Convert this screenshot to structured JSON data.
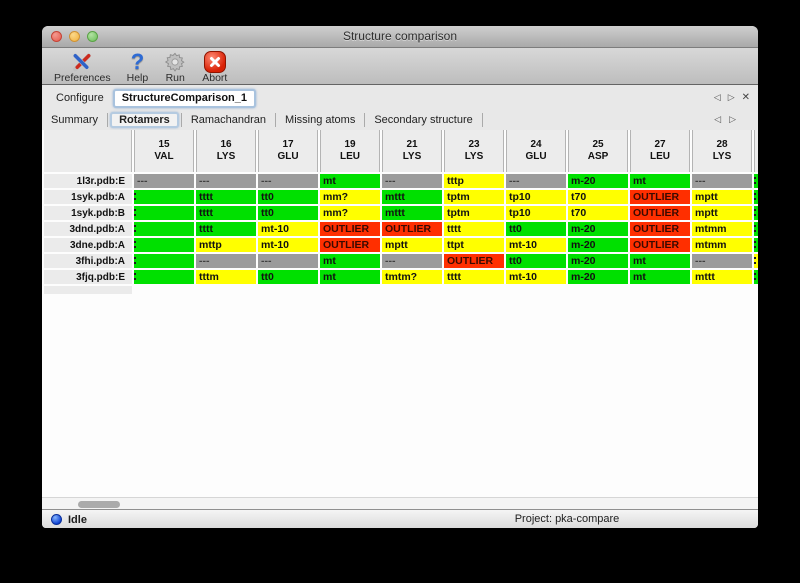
{
  "window": {
    "title": "Structure comparison"
  },
  "toolbar": {
    "items": [
      {
        "label": "Preferences",
        "icon": "tools-icon"
      },
      {
        "label": "Help",
        "icon": "help-icon"
      },
      {
        "label": "Run",
        "icon": "gear-icon"
      },
      {
        "label": "Abort",
        "icon": "abort-icon"
      }
    ]
  },
  "configure": {
    "label": "Configure",
    "value": "StructureComparison_1",
    "nav": {
      "prev": "◁",
      "next": "▷",
      "close": "✕"
    }
  },
  "tabs": {
    "items": [
      {
        "label": "Summary"
      },
      {
        "label": "Rotamers"
      },
      {
        "label": "Ramachandran"
      },
      {
        "label": "Missing atoms"
      },
      {
        "label": "Secondary structure"
      }
    ],
    "active": "Rotamers",
    "nav": {
      "prev": "◁",
      "next": "▷"
    }
  },
  "colors": {
    "green": "#00e000",
    "yellow": "#ffff00",
    "red": "#ff2f00",
    "gray": "#9b9b9b"
  },
  "table": {
    "columns": [
      {
        "num": "15",
        "res": "VAL"
      },
      {
        "num": "16",
        "res": "LYS"
      },
      {
        "num": "17",
        "res": "GLU"
      },
      {
        "num": "19",
        "res": "LEU"
      },
      {
        "num": "21",
        "res": "LYS"
      },
      {
        "num": "23",
        "res": "LYS"
      },
      {
        "num": "24",
        "res": "GLU"
      },
      {
        "num": "25",
        "res": "ASP"
      },
      {
        "num": "27",
        "res": "LEU"
      },
      {
        "num": "28",
        "res": "LYS"
      }
    ],
    "rows": [
      {
        "label": "1l3r.pdb:E",
        "cells": [
          {
            "text": "---",
            "color": "gray"
          },
          {
            "text": "---",
            "color": "gray"
          },
          {
            "text": "---",
            "color": "gray"
          },
          {
            "text": "mt",
            "color": "green"
          },
          {
            "text": "---",
            "color": "gray"
          },
          {
            "text": "tttp",
            "color": "yellow"
          },
          {
            "text": "---",
            "color": "gray"
          },
          {
            "text": "m-20",
            "color": "green"
          },
          {
            "text": "mt",
            "color": "green"
          },
          {
            "text": "---",
            "color": "gray"
          },
          {
            "text": "",
            "color": "green",
            "sliver": true,
            "clip": true
          }
        ]
      },
      {
        "label": "1syk.pdb:A",
        "cells": [
          {
            "text": "",
            "color": "green",
            "clip": true
          },
          {
            "text": "tttt",
            "color": "green"
          },
          {
            "text": "tt0",
            "color": "green"
          },
          {
            "text": "mm?",
            "color": "yellow"
          },
          {
            "text": "mttt",
            "color": "green"
          },
          {
            "text": "tptm",
            "color": "yellow"
          },
          {
            "text": "tp10",
            "color": "yellow"
          },
          {
            "text": "t70",
            "color": "yellow"
          },
          {
            "text": "OUTLIER",
            "color": "red"
          },
          {
            "text": "mptt",
            "color": "yellow"
          },
          {
            "text": "",
            "color": "green",
            "sliver": true,
            "clip": true
          }
        ]
      },
      {
        "label": "1syk.pdb:B",
        "cells": [
          {
            "text": "",
            "color": "green",
            "clip": true
          },
          {
            "text": "tttt",
            "color": "green"
          },
          {
            "text": "tt0",
            "color": "green"
          },
          {
            "text": "mm?",
            "color": "yellow"
          },
          {
            "text": "mttt",
            "color": "green"
          },
          {
            "text": "tptm",
            "color": "yellow"
          },
          {
            "text": "tp10",
            "color": "yellow"
          },
          {
            "text": "t70",
            "color": "yellow"
          },
          {
            "text": "OUTLIER",
            "color": "red"
          },
          {
            "text": "mptt",
            "color": "yellow"
          },
          {
            "text": "",
            "color": "green",
            "sliver": true,
            "clip": true
          }
        ]
      },
      {
        "label": "3dnd.pdb:A",
        "cells": [
          {
            "text": "",
            "color": "green",
            "clip": true
          },
          {
            "text": "tttt",
            "color": "green"
          },
          {
            "text": "mt-10",
            "color": "yellow"
          },
          {
            "text": "OUTLIER",
            "color": "red"
          },
          {
            "text": "OUTLIER",
            "color": "red"
          },
          {
            "text": "tttt",
            "color": "yellow"
          },
          {
            "text": "tt0",
            "color": "green"
          },
          {
            "text": "m-20",
            "color": "green"
          },
          {
            "text": "OUTLIER",
            "color": "red"
          },
          {
            "text": "mtmm",
            "color": "yellow"
          },
          {
            "text": "",
            "color": "green",
            "sliver": true,
            "clip": true
          }
        ]
      },
      {
        "label": "3dne.pdb:A",
        "cells": [
          {
            "text": "",
            "color": "green",
            "clip": true
          },
          {
            "text": "mttp",
            "color": "yellow"
          },
          {
            "text": "mt-10",
            "color": "yellow"
          },
          {
            "text": "OUTLIER",
            "color": "red"
          },
          {
            "text": "mptt",
            "color": "yellow"
          },
          {
            "text": "ttpt",
            "color": "yellow"
          },
          {
            "text": "mt-10",
            "color": "yellow"
          },
          {
            "text": "m-20",
            "color": "green"
          },
          {
            "text": "OUTLIER",
            "color": "red"
          },
          {
            "text": "mtmm",
            "color": "yellow"
          },
          {
            "text": "",
            "color": "green",
            "sliver": true,
            "clip": true
          }
        ]
      },
      {
        "label": "3fhi.pdb:A",
        "cells": [
          {
            "text": "",
            "color": "green",
            "clip": true
          },
          {
            "text": "---",
            "color": "gray"
          },
          {
            "text": "---",
            "color": "gray"
          },
          {
            "text": "mt",
            "color": "green"
          },
          {
            "text": "---",
            "color": "gray"
          },
          {
            "text": "OUTLIER",
            "color": "red"
          },
          {
            "text": "tt0",
            "color": "green"
          },
          {
            "text": "m-20",
            "color": "green"
          },
          {
            "text": "mt",
            "color": "green"
          },
          {
            "text": "---",
            "color": "gray"
          },
          {
            "text": "",
            "color": "yellow",
            "sliver": true,
            "clip": true
          }
        ]
      },
      {
        "label": "3fjq.pdb:E",
        "cells": [
          {
            "text": "",
            "color": "green",
            "clip": true
          },
          {
            "text": "tttm",
            "color": "yellow"
          },
          {
            "text": "tt0",
            "color": "green"
          },
          {
            "text": "mt",
            "color": "green"
          },
          {
            "text": "tmtm?",
            "color": "yellow"
          },
          {
            "text": "tttt",
            "color": "yellow"
          },
          {
            "text": "mt-10",
            "color": "yellow"
          },
          {
            "text": "m-20",
            "color": "green"
          },
          {
            "text": "mt",
            "color": "green"
          },
          {
            "text": "mttt",
            "color": "yellow"
          },
          {
            "text": "",
            "color": "green",
            "sliver": true,
            "clip": true
          }
        ]
      }
    ]
  },
  "statusbar": {
    "status": "Idle",
    "project": "Project: pka-compare"
  }
}
